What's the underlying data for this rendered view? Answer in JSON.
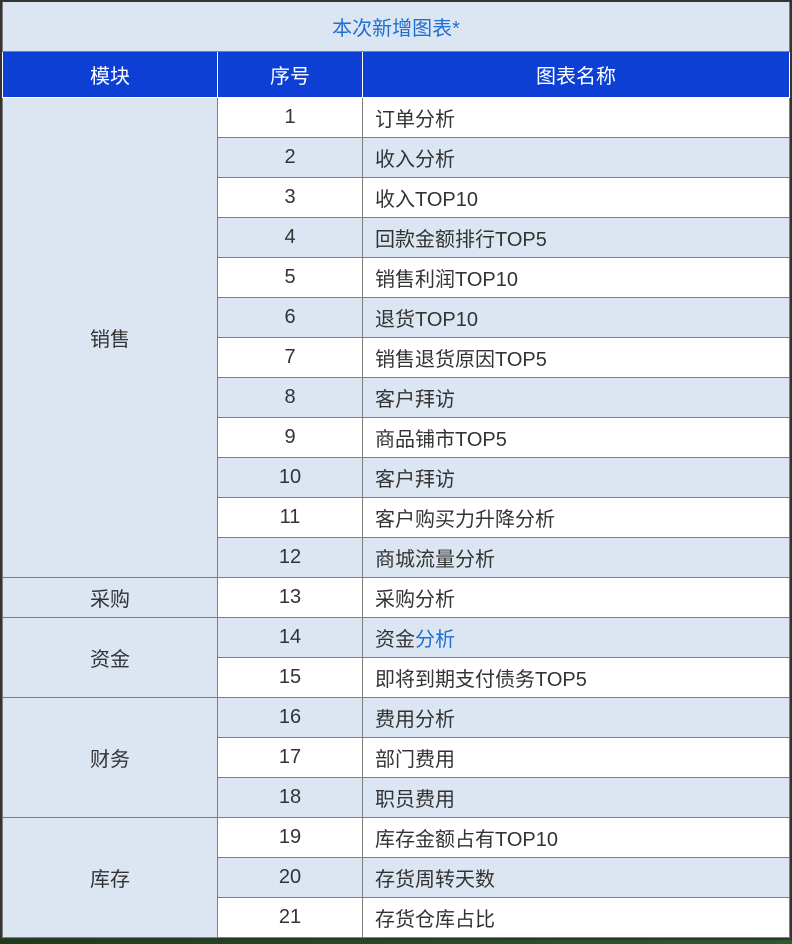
{
  "table": {
    "title": "本次新增图表*",
    "headers": {
      "module": "模块",
      "seq": "序号",
      "name": "图表名称"
    },
    "modules": [
      {
        "name": "销售",
        "rowspan": 12,
        "rows": [
          {
            "seq": "1",
            "name": "订单分析",
            "zebra": "odd"
          },
          {
            "seq": "2",
            "name": "收入分析",
            "zebra": "even"
          },
          {
            "seq": "3",
            "name": "收入TOP10",
            "zebra": "odd"
          },
          {
            "seq": "4",
            "name": "回款金额排行TOP5",
            "zebra": "even"
          },
          {
            "seq": "5",
            "name": "销售利润TOP10",
            "zebra": "odd"
          },
          {
            "seq": "6",
            "name": "退货TOP10",
            "zebra": "even"
          },
          {
            "seq": "7",
            "name": "销售退货原因TOP5",
            "zebra": "odd"
          },
          {
            "seq": "8",
            "name": "客户拜访",
            "zebra": "even"
          },
          {
            "seq": "9",
            "name": "商品铺市TOP5",
            "zebra": "odd"
          },
          {
            "seq": "10",
            "name": "客户拜访",
            "zebra": "even"
          },
          {
            "seq": "11",
            "name": "客户购买力升降分析",
            "zebra": "odd"
          },
          {
            "seq": "12",
            "name": "商城流量分析",
            "zebra": "even"
          }
        ]
      },
      {
        "name": "采购",
        "rowspan": 1,
        "rows": [
          {
            "seq": "13",
            "name": "采购分析",
            "zebra": "odd"
          }
        ]
      },
      {
        "name": "资金",
        "rowspan": 2,
        "rows": [
          {
            "seq": "14",
            "name_prefix": "资金",
            "name_link": "分析",
            "zebra": "even",
            "has_link": true
          },
          {
            "seq": "15",
            "name": "即将到期支付债务TOP5",
            "zebra": "odd"
          }
        ]
      },
      {
        "name": "财务",
        "rowspan": 3,
        "rows": [
          {
            "seq": "16",
            "name": "费用分析",
            "zebra": "even"
          },
          {
            "seq": "17",
            "name": "部门费用",
            "zebra": "odd"
          },
          {
            "seq": "18",
            "name": "职员费用",
            "zebra": "even"
          }
        ]
      },
      {
        "name": "库存",
        "rowspan": 3,
        "rows": [
          {
            "seq": "19",
            "name": "库存金额占有TOP10",
            "zebra": "odd"
          },
          {
            "seq": "20",
            "name": "存货周转天数",
            "zebra": "even"
          },
          {
            "seq": "21",
            "name": "存货仓库占比",
            "zebra": "odd"
          }
        ]
      }
    ],
    "colors": {
      "title_bg": "#dce6f2",
      "title_text": "#1f6fd4",
      "header_bg": "#0e3fd4",
      "header_text": "#ffffff",
      "row_odd_bg": "#ffffff",
      "row_even_bg": "#dce6f2",
      "border": "#7f7f7f",
      "text": "#333333",
      "link": "#1f6fd4"
    },
    "typography": {
      "title_fontsize": 20,
      "header_fontsize": 20,
      "cell_fontsize": 20
    },
    "column_widths": {
      "module": 215,
      "seq": 145,
      "name": "auto"
    }
  }
}
